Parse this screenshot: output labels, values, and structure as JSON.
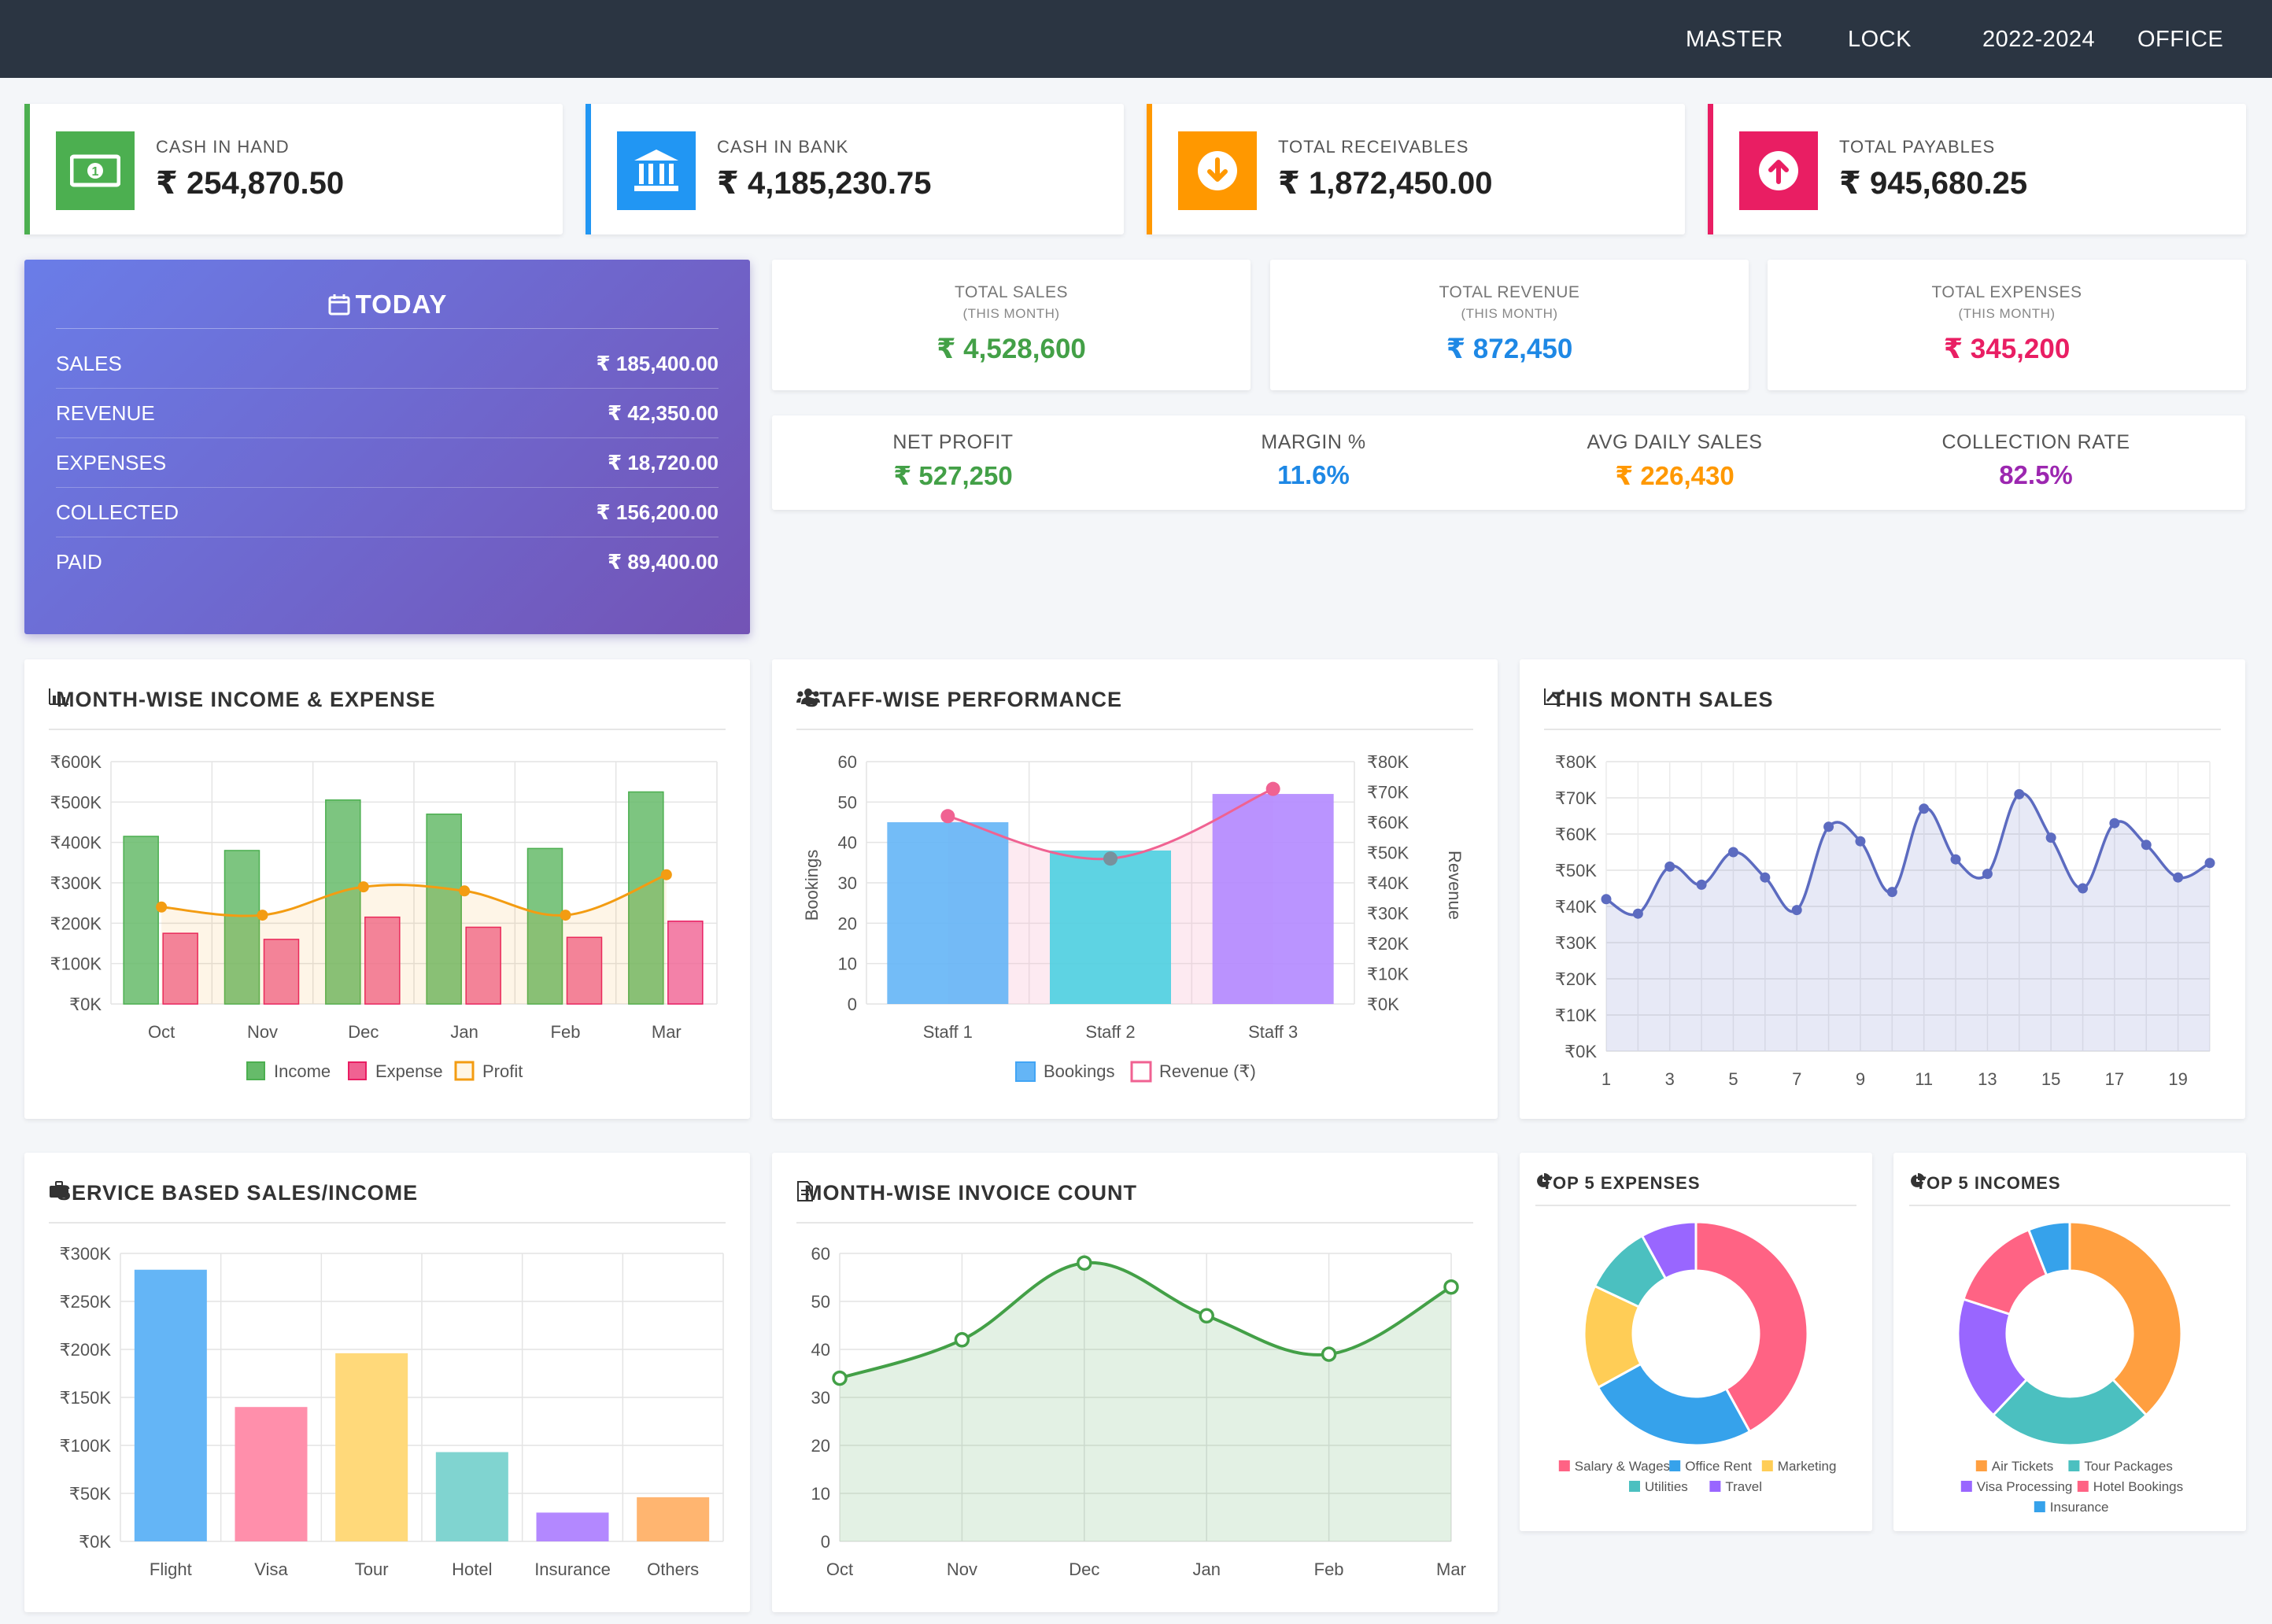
{
  "nav": {
    "master": "MASTER",
    "lock": "LOCK",
    "year": "2022-2024",
    "office": "OFFICE"
  },
  "stats": [
    {
      "label": "CASH IN HAND",
      "value": "₹ 254,870.50",
      "color": "#4caf50",
      "icon": "cash-icon"
    },
    {
      "label": "CASH IN BANK",
      "value": "₹ 4,185,230.75",
      "color": "#2196f3",
      "icon": "bank-icon"
    },
    {
      "label": "TOTAL RECEIVABLES",
      "value": "₹ 1,872,450.00",
      "color": "#ff9800",
      "icon": "arrow-down-circle-icon"
    },
    {
      "label": "TOTAL PAYABLES",
      "value": "₹ 945,680.25",
      "color": "#e91e63",
      "icon": "arrow-up-circle-icon"
    }
  ],
  "today": {
    "title": "TODAY",
    "rows": [
      {
        "label": "SALES",
        "value": "₹ 185,400.00"
      },
      {
        "label": "REVENUE",
        "value": "₹ 42,350.00"
      },
      {
        "label": "EXPENSES",
        "value": "₹ 18,720.00"
      },
      {
        "label": "COLLECTED",
        "value": "₹ 156,200.00"
      },
      {
        "label": "PAID",
        "value": "₹ 89,400.00"
      }
    ]
  },
  "month_totals": [
    {
      "label": "TOTAL SALES",
      "sub": "(THIS MONTH)",
      "value": "₹ 4,528,600",
      "color": "#43a047"
    },
    {
      "label": "TOTAL REVENUE",
      "sub": "(THIS MONTH)",
      "value": "₹ 872,450",
      "color": "#1e88e5"
    },
    {
      "label": "TOTAL EXPENSES",
      "sub": "(THIS MONTH)",
      "value": "₹ 345,200",
      "color": "#e91e63"
    }
  ],
  "kpis": [
    {
      "label": "NET PROFIT",
      "value": "₹ 527,250",
      "color": "#43a047"
    },
    {
      "label": "MARGIN %",
      "value": "11.6%",
      "color": "#1e88e5"
    },
    {
      "label": "AVG DAILY SALES",
      "value": "₹ 226,430",
      "color": "#ff9800"
    },
    {
      "label": "COLLECTION RATE",
      "value": "82.5%",
      "color": "#9c27b0"
    }
  ],
  "panels": {
    "income_expense": "MONTH-WISE INCOME & EXPENSE",
    "staff": "STAFF-WISE PERFORMANCE",
    "month_sales": "THIS MONTH SALES",
    "service": "SERVICE BASED SALES/INCOME",
    "invoice": "MONTH-WISE INVOICE COUNT",
    "top_expenses": "TOP 5 EXPENSES",
    "top_incomes": "TOP 5 INCOMES"
  },
  "chart_data": [
    {
      "id": "income_expense",
      "type": "bar",
      "categories": [
        "Oct",
        "Nov",
        "Dec",
        "Jan",
        "Feb",
        "Mar"
      ],
      "y_ticks": [
        "₹0K",
        "₹100K",
        "₹200K",
        "₹300K",
        "₹400K",
        "₹500K",
        "₹600K"
      ],
      "ylim": [
        0,
        600000
      ],
      "series": [
        {
          "name": "Income",
          "type": "bar",
          "values": [
            415000,
            380000,
            505000,
            470000,
            385000,
            525000
          ],
          "color": "#66bb6a"
        },
        {
          "name": "Expense",
          "type": "bar",
          "values": [
            175000,
            160000,
            215000,
            190000,
            165000,
            205000
          ],
          "color": "#f06292"
        },
        {
          "name": "Profit",
          "type": "line",
          "values": [
            240000,
            220000,
            290000,
            280000,
            220000,
            320000
          ],
          "color": "#f39c12"
        }
      ],
      "legend": "bottom"
    },
    {
      "id": "staff",
      "type": "bar",
      "categories": [
        "Staff 1",
        "Staff 2",
        "Staff 3"
      ],
      "ylabel": "Bookings",
      "y2label": "Revenue",
      "y_ticks": [
        "0",
        "10",
        "20",
        "30",
        "40",
        "50",
        "60"
      ],
      "ylim": [
        0,
        60
      ],
      "y2_ticks": [
        "₹0K",
        "₹10K",
        "₹20K",
        "₹30K",
        "₹40K",
        "₹50K",
        "₹60K",
        "₹70K",
        "₹80K"
      ],
      "y2lim": [
        0,
        80000
      ],
      "series": [
        {
          "name": "Bookings",
          "type": "bar",
          "values": [
            45,
            38,
            52
          ],
          "colors": [
            "#64b5f6",
            "#4dd0e1",
            "#b388ff"
          ]
        },
        {
          "name": "Revenue (₹)",
          "type": "line",
          "values": [
            62000,
            48000,
            71000
          ],
          "color": "#f06292"
        }
      ],
      "legend": "bottom"
    },
    {
      "id": "month_sales",
      "type": "area",
      "x": [
        1,
        2,
        3,
        4,
        5,
        6,
        7,
        8,
        9,
        10,
        11,
        12,
        13,
        14,
        15,
        16,
        17,
        18,
        19,
        20
      ],
      "x_ticks": [
        "1",
        "3",
        "5",
        "7",
        "9",
        "11",
        "13",
        "15",
        "17",
        "19"
      ],
      "y_ticks": [
        "₹0K",
        "₹10K",
        "₹20K",
        "₹30K",
        "₹40K",
        "₹50K",
        "₹60K",
        "₹70K",
        "₹80K"
      ],
      "ylim": [
        0,
        80000
      ],
      "values": [
        42000,
        38000,
        51000,
        46000,
        55000,
        48000,
        39000,
        62000,
        58000,
        44000,
        67000,
        53000,
        49000,
        71000,
        59000,
        45000,
        63000,
        57000,
        48000,
        52000
      ],
      "color": "#5c6bc0"
    },
    {
      "id": "service",
      "type": "bar",
      "categories": [
        "Flight",
        "Visa",
        "Tour",
        "Hotel",
        "Insurance",
        "Others"
      ],
      "y_ticks": [
        "₹0K",
        "₹50K",
        "₹100K",
        "₹150K",
        "₹200K",
        "₹250K",
        "₹300K"
      ],
      "ylim": [
        0,
        300000
      ],
      "values": [
        283000,
        140000,
        196000,
        93000,
        30000,
        46000
      ],
      "colors": [
        "#64b5f6",
        "#ff8fab",
        "#ffd97a",
        "#80d4d0",
        "#b388ff",
        "#ffb570"
      ]
    },
    {
      "id": "invoice",
      "type": "area",
      "categories": [
        "Oct",
        "Nov",
        "Dec",
        "Jan",
        "Feb",
        "Mar"
      ],
      "y_ticks": [
        "0",
        "10",
        "20",
        "30",
        "40",
        "50",
        "60"
      ],
      "ylim": [
        0,
        60
      ],
      "values": [
        34,
        42,
        58,
        47,
        39,
        53
      ],
      "color": "#43a047"
    },
    {
      "id": "top_expenses",
      "type": "pie",
      "labels": [
        "Salary & Wages",
        "Office Rent",
        "Marketing",
        "Utilities",
        "Travel"
      ],
      "values": [
        42,
        25,
        15,
        10,
        8
      ],
      "colors": [
        "#ff6384",
        "#36a2eb",
        "#ffcd56",
        "#4bc0c0",
        "#9966ff"
      ]
    },
    {
      "id": "top_incomes",
      "type": "pie",
      "labels": [
        "Air Tickets",
        "Tour Packages",
        "Visa Processing",
        "Hotel Bookings",
        "Insurance"
      ],
      "values": [
        38,
        24,
        18,
        14,
        6
      ],
      "colors": [
        "#ff9f40",
        "#4bc0c0",
        "#9966ff",
        "#ff6384",
        "#36a2eb"
      ]
    }
  ]
}
